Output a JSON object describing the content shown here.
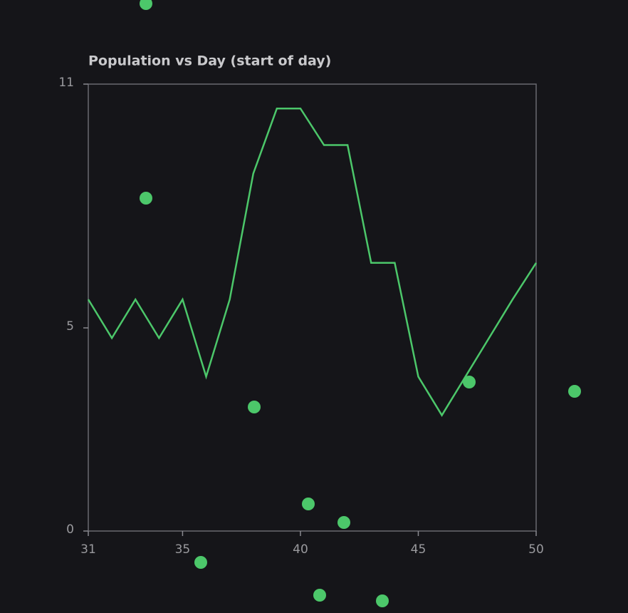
{
  "chart_data": {
    "type": "line",
    "title": "Population vs Day (start of day)",
    "x": [
      31,
      32,
      33,
      34,
      35,
      36,
      37,
      38,
      39,
      40,
      41,
      42,
      43,
      44,
      45,
      46,
      47,
      48,
      49,
      50
    ],
    "series": [
      {
        "color": "#4cc76a",
        "values": [
          5.7,
          4.75,
          5.7,
          4.75,
          5.7,
          3.8,
          5.7,
          8.8,
          10.4,
          10.4,
          9.5,
          9.5,
          6.6,
          6.6,
          3.8,
          2.85,
          3.8,
          4.75,
          5.7,
          6.6
        ]
      }
    ],
    "xlim": [
      31,
      50
    ],
    "xticks": [
      31,
      35,
      40,
      45,
      50
    ],
    "ylim": [
      0,
      11
    ],
    "yticks": [
      0,
      5,
      11
    ]
  }
}
